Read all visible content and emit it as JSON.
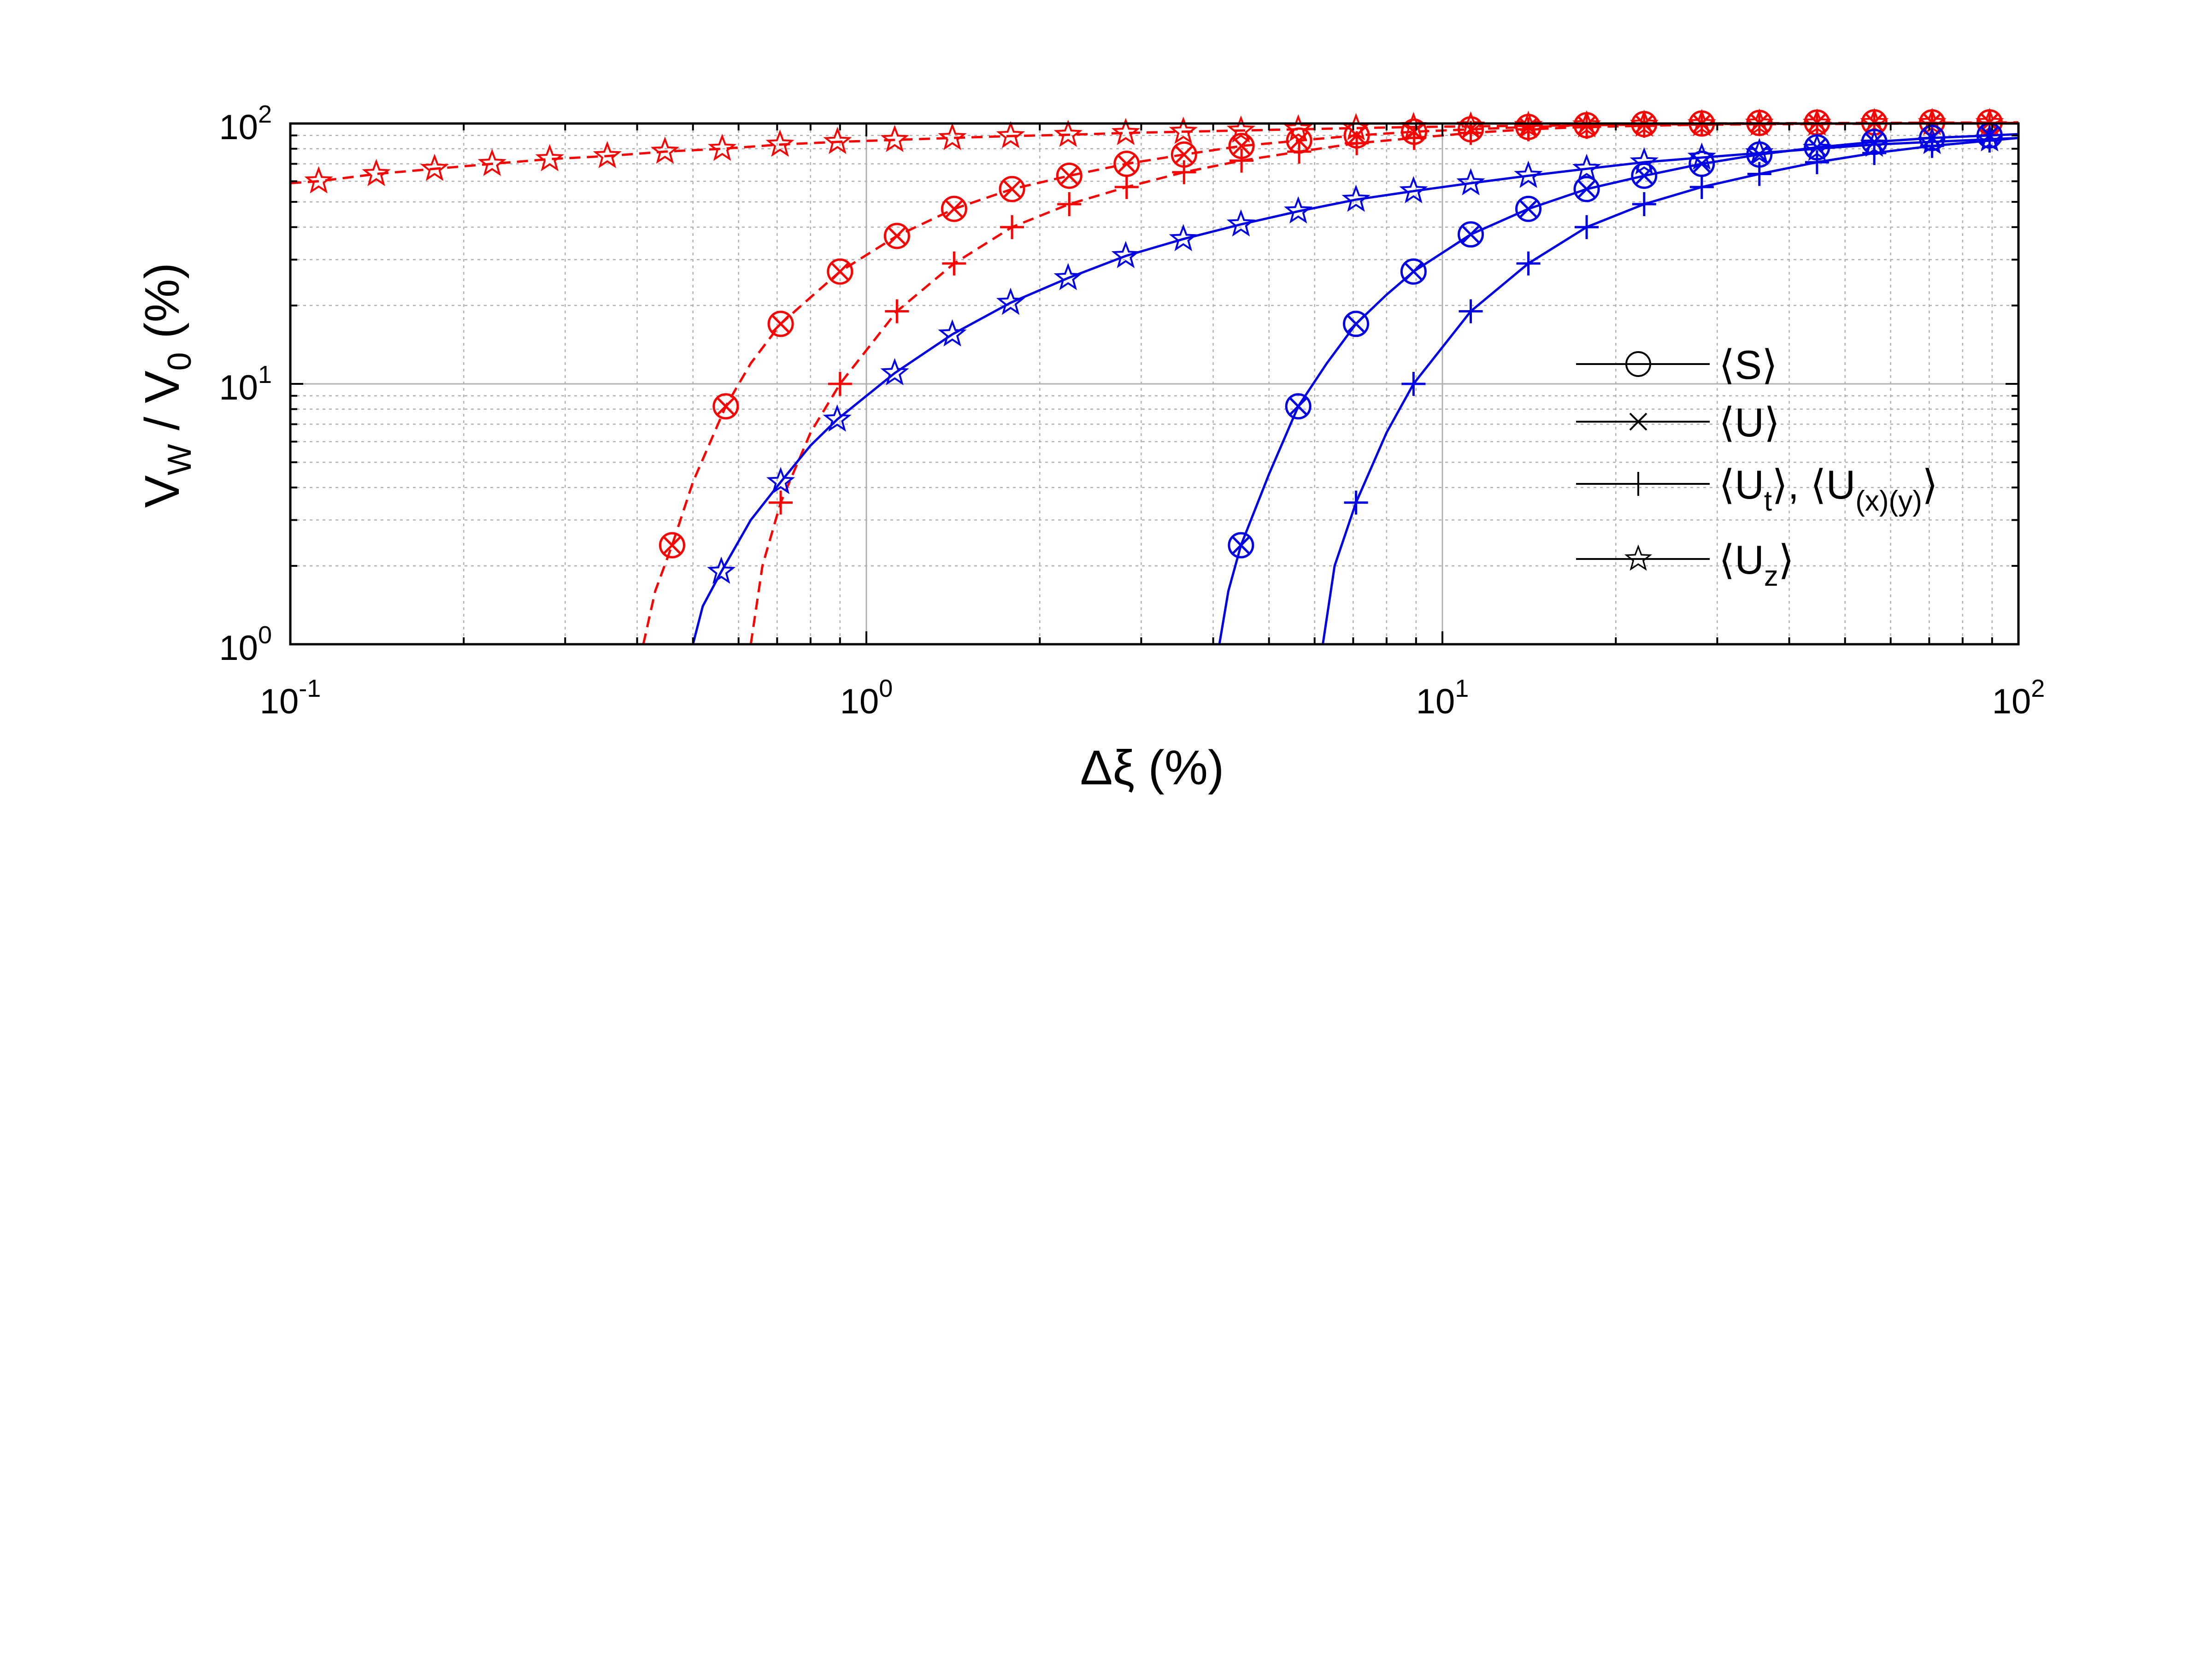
{
  "chart_data": {
    "type": "line",
    "title": "",
    "xlabel_parts": {
      "symbol": "Δξ",
      "unit": "(%)"
    },
    "ylabel_parts": {
      "v": "V",
      "w_sub": "W",
      "slash": " / V",
      "zero_sub": "0",
      "unit": " (%)"
    },
    "x_scale": "log",
    "y_scale": "log",
    "xlim": [
      0.1,
      100
    ],
    "ylim": [
      1,
      100
    ],
    "grid": true,
    "minor_grid": true,
    "x_ticks": [
      {
        "value": 0.1,
        "base": "10",
        "exp": "-1"
      },
      {
        "value": 1,
        "base": "10",
        "exp": "0"
      },
      {
        "value": 10,
        "base": "10",
        "exp": "1"
      },
      {
        "value": 100,
        "base": "10",
        "exp": "2"
      }
    ],
    "y_ticks": [
      {
        "value": 1,
        "base": "10",
        "exp": "0"
      },
      {
        "value": 10,
        "base": "10",
        "exp": "1"
      },
      {
        "value": 100,
        "base": "10",
        "exp": "2"
      }
    ],
    "colors": {
      "red": "#ff0000",
      "blue": "#0000e6",
      "legend": "#000000",
      "grid": "#b0b0b0"
    },
    "legend": {
      "placement": "center-right",
      "entries": [
        {
          "marker": "circle",
          "parts": [
            {
              "t": "⟨S⟩"
            }
          ]
        },
        {
          "marker": "x",
          "parts": [
            {
              "t": "⟨U⟩"
            }
          ]
        },
        {
          "marker": "plus",
          "parts": [
            {
              "t": "⟨U"
            },
            {
              "t": "t",
              "sub": true
            },
            {
              "t": "⟩, ⟨U"
            },
            {
              "t": "(x)(y)",
              "sub": true
            },
            {
              "t": "⟩"
            }
          ]
        },
        {
          "marker": "star",
          "parts": [
            {
              "t": "⟨U"
            },
            {
              "t": "z",
              "sub": true
            },
            {
              "t": "⟩"
            }
          ]
        }
      ]
    },
    "series": [
      {
        "color": "red",
        "dash": true,
        "markers": [
          "circle",
          "x"
        ],
        "curve": [
          [
            0.41,
            1.0
          ],
          [
            0.43,
            1.6
          ],
          [
            0.46,
            2.4
          ],
          [
            0.5,
            4.2
          ],
          [
            0.57,
            8.2
          ],
          [
            0.63,
            12.0
          ],
          [
            0.71,
            17.0
          ],
          [
            0.8,
            21.5
          ],
          [
            0.9,
            27.0
          ],
          [
            1.13,
            37.0
          ],
          [
            1.42,
            47.0
          ],
          [
            1.79,
            56.0
          ],
          [
            2.25,
            63.0
          ],
          [
            2.83,
            70.0
          ],
          [
            3.56,
            76.0
          ],
          [
            4.48,
            82.0
          ],
          [
            5.64,
            86.0
          ],
          [
            7.1,
            90.0
          ],
          [
            8.93,
            93.0
          ],
          [
            11.2,
            95.0
          ],
          [
            14.1,
            97.0
          ],
          [
            17.8,
            98.5
          ],
          [
            22.4,
            99.5
          ],
          [
            28.2,
            100.0
          ],
          [
            100,
            101.0
          ]
        ],
        "points": [
          [
            0.46,
            2.4
          ],
          [
            0.57,
            8.2
          ],
          [
            0.71,
            17.0
          ],
          [
            0.9,
            27.0
          ],
          [
            1.13,
            37.0
          ],
          [
            1.42,
            47.0
          ],
          [
            1.79,
            56.0
          ],
          [
            2.25,
            63.0
          ],
          [
            2.83,
            70.0
          ],
          [
            3.56,
            76.0
          ],
          [
            4.48,
            82.0
          ],
          [
            5.64,
            86.0
          ],
          [
            7.1,
            90.0
          ],
          [
            8.93,
            93.0
          ],
          [
            11.2,
            95.0
          ],
          [
            14.1,
            97.0
          ],
          [
            17.8,
            98.5
          ],
          [
            22.4,
            99.5
          ],
          [
            28.2,
            100.0
          ],
          [
            35.5,
            100.5
          ],
          [
            44.7,
            100.8
          ],
          [
            56.2,
            101.0
          ],
          [
            70.8,
            101.0
          ],
          [
            89.1,
            101.0
          ]
        ]
      },
      {
        "color": "red",
        "dash": true,
        "markers": [
          "plus"
        ],
        "curve": [
          [
            0.63,
            1.0
          ],
          [
            0.66,
            2.0
          ],
          [
            0.71,
            3.5
          ],
          [
            0.8,
            6.5
          ],
          [
            0.9,
            10.0
          ],
          [
            1.13,
            19.0
          ],
          [
            1.42,
            29.0
          ],
          [
            1.79,
            40.0
          ],
          [
            2.25,
            49.0
          ],
          [
            2.83,
            57.0
          ],
          [
            3.56,
            65.0
          ],
          [
            4.48,
            72.0
          ],
          [
            5.64,
            78.0
          ],
          [
            7.1,
            84.0
          ],
          [
            8.93,
            88.0
          ],
          [
            11.2,
            92.0
          ],
          [
            14.1,
            95.0
          ],
          [
            17.8,
            97.0
          ],
          [
            22.4,
            98.0
          ],
          [
            28.2,
            99.0
          ],
          [
            100,
            100.5
          ]
        ],
        "points": [
          [
            0.71,
            3.5
          ],
          [
            0.9,
            10.0
          ],
          [
            1.13,
            19.0
          ],
          [
            1.42,
            29.0
          ],
          [
            1.79,
            40.0
          ],
          [
            2.25,
            49.0
          ],
          [
            2.83,
            57.0
          ],
          [
            3.56,
            65.0
          ],
          [
            4.48,
            72.0
          ],
          [
            5.64,
            78.0
          ],
          [
            7.1,
            84.0
          ],
          [
            8.93,
            88.0
          ],
          [
            11.2,
            92.0
          ],
          [
            14.1,
            95.0
          ],
          [
            17.8,
            97.0
          ],
          [
            22.4,
            98.0
          ],
          [
            28.2,
            99.0
          ],
          [
            35.5,
            99.5
          ],
          [
            44.7,
            100.0
          ],
          [
            56.2,
            100.0
          ],
          [
            70.8,
            100.5
          ],
          [
            89.1,
            100.5
          ]
        ]
      },
      {
        "color": "red",
        "dash": true,
        "markers": [
          "star"
        ],
        "curve": [
          [
            0.1,
            59.0
          ],
          [
            0.112,
            60.0
          ],
          [
            0.141,
            64.0
          ],
          [
            0.178,
            67.0
          ],
          [
            0.224,
            70.0
          ],
          [
            0.282,
            73.0
          ],
          [
            0.355,
            75.0
          ],
          [
            0.447,
            78.0
          ],
          [
            0.562,
            80.0
          ],
          [
            0.708,
            83.0
          ],
          [
            0.891,
            85.0
          ],
          [
            1.12,
            86.5
          ],
          [
            1.41,
            88.0
          ],
          [
            1.78,
            89.5
          ],
          [
            2.24,
            90.5
          ],
          [
            2.82,
            92.0
          ],
          [
            3.55,
            93.0
          ],
          [
            4.47,
            94.0
          ],
          [
            5.62,
            95.0
          ],
          [
            7.08,
            96.0
          ],
          [
            8.91,
            97.0
          ],
          [
            11.2,
            97.5
          ],
          [
            14.1,
            98.0
          ],
          [
            17.8,
            98.5
          ],
          [
            22.4,
            99.0
          ],
          [
            28.2,
            99.5
          ],
          [
            100,
            100.5
          ]
        ],
        "points": [
          [
            0.112,
            60.0
          ],
          [
            0.141,
            64.0
          ],
          [
            0.178,
            67.0
          ],
          [
            0.224,
            70.0
          ],
          [
            0.282,
            73.0
          ],
          [
            0.355,
            75.0
          ],
          [
            0.447,
            78.0
          ],
          [
            0.562,
            80.0
          ],
          [
            0.708,
            83.0
          ],
          [
            0.891,
            85.0
          ],
          [
            1.12,
            86.5
          ],
          [
            1.41,
            88.0
          ],
          [
            1.78,
            89.5
          ],
          [
            2.24,
            90.5
          ],
          [
            2.82,
            92.0
          ],
          [
            3.55,
            93.0
          ],
          [
            4.47,
            94.0
          ],
          [
            5.62,
            95.0
          ],
          [
            7.08,
            96.0
          ],
          [
            8.91,
            97.0
          ],
          [
            11.2,
            97.5
          ],
          [
            14.1,
            98.0
          ],
          [
            17.8,
            98.5
          ],
          [
            22.4,
            99.0
          ],
          [
            28.2,
            99.5
          ],
          [
            35.5,
            100.0
          ],
          [
            44.7,
            100.0
          ],
          [
            56.2,
            100.5
          ],
          [
            70.8,
            100.5
          ],
          [
            89.1,
            100.5
          ]
        ]
      },
      {
        "color": "blue",
        "dash": false,
        "markers": [
          "star"
        ],
        "curve": [
          [
            0.5,
            1.0
          ],
          [
            0.52,
            1.4
          ],
          [
            0.56,
            1.9
          ],
          [
            0.63,
            3.0
          ],
          [
            0.71,
            4.2
          ],
          [
            0.8,
            5.8
          ],
          [
            0.89,
            7.3
          ],
          [
            1.12,
            11.0
          ],
          [
            1.41,
            15.5
          ],
          [
            1.78,
            20.5
          ],
          [
            2.24,
            25.5
          ],
          [
            2.82,
            31.0
          ],
          [
            3.55,
            36.0
          ],
          [
            4.47,
            41.0
          ],
          [
            5.62,
            46.0
          ],
          [
            7.08,
            51.0
          ],
          [
            8.91,
            55.0
          ],
          [
            11.2,
            59.0
          ],
          [
            14.1,
            63.0
          ],
          [
            17.8,
            67.0
          ],
          [
            22.4,
            71.0
          ],
          [
            28.2,
            74.0
          ],
          [
            35.5,
            77.0
          ],
          [
            44.7,
            80.0
          ],
          [
            56.2,
            83.0
          ],
          [
            70.8,
            85.0
          ],
          [
            89.1,
            87.0
          ],
          [
            100,
            88.0
          ]
        ],
        "points": [
          [
            0.56,
            1.9
          ],
          [
            0.71,
            4.2
          ],
          [
            0.89,
            7.3
          ],
          [
            1.12,
            11.0
          ],
          [
            1.41,
            15.5
          ],
          [
            1.78,
            20.5
          ],
          [
            2.24,
            25.5
          ],
          [
            2.82,
            31.0
          ],
          [
            3.55,
            36.0
          ],
          [
            4.47,
            41.0
          ],
          [
            5.62,
            46.0
          ],
          [
            7.08,
            51.0
          ],
          [
            8.91,
            55.0
          ],
          [
            11.2,
            59.0
          ],
          [
            14.1,
            63.0
          ],
          [
            17.8,
            67.0
          ],
          [
            22.4,
            71.0
          ],
          [
            28.2,
            74.0
          ],
          [
            35.5,
            77.0
          ],
          [
            44.7,
            80.0
          ],
          [
            56.2,
            83.0
          ],
          [
            70.8,
            85.0
          ],
          [
            89.1,
            87.0
          ]
        ]
      },
      {
        "color": "blue",
        "dash": false,
        "markers": [
          "circle",
          "x"
        ],
        "curve": [
          [
            4.1,
            1.0
          ],
          [
            4.25,
            1.6
          ],
          [
            4.47,
            2.4
          ],
          [
            5.0,
            4.5
          ],
          [
            5.62,
            8.2
          ],
          [
            6.3,
            12.0
          ],
          [
            7.08,
            17.0
          ],
          [
            8.0,
            22.0
          ],
          [
            8.91,
            27.0
          ],
          [
            11.2,
            37.5
          ],
          [
            14.1,
            47.0
          ],
          [
            17.8,
            56.0
          ],
          [
            22.4,
            63.0
          ],
          [
            28.2,
            70.0
          ],
          [
            35.5,
            76.0
          ],
          [
            44.7,
            81.0
          ],
          [
            56.2,
            85.0
          ],
          [
            70.8,
            88.0
          ],
          [
            89.1,
            90.0
          ],
          [
            100,
            91.0
          ]
        ],
        "points": [
          [
            4.47,
            2.4
          ],
          [
            5.62,
            8.2
          ],
          [
            7.08,
            17.0
          ],
          [
            8.91,
            27.0
          ],
          [
            11.2,
            37.5
          ],
          [
            14.1,
            47.0
          ],
          [
            17.8,
            56.0
          ],
          [
            22.4,
            63.0
          ],
          [
            28.2,
            70.0
          ],
          [
            35.5,
            76.0
          ],
          [
            44.7,
            81.0
          ],
          [
            56.2,
            85.0
          ],
          [
            70.8,
            88.0
          ],
          [
            89.1,
            90.0
          ]
        ]
      },
      {
        "color": "blue",
        "dash": false,
        "markers": [
          "plus"
        ],
        "curve": [
          [
            6.2,
            1.0
          ],
          [
            6.5,
            2.0
          ],
          [
            7.08,
            3.5
          ],
          [
            8.0,
            6.5
          ],
          [
            8.91,
            10.0
          ],
          [
            11.2,
            19.0
          ],
          [
            14.1,
            29.0
          ],
          [
            17.8,
            40.0
          ],
          [
            22.4,
            49.0
          ],
          [
            28.2,
            57.0
          ],
          [
            35.5,
            64.0
          ],
          [
            44.7,
            71.0
          ],
          [
            56.2,
            77.0
          ],
          [
            70.8,
            82.0
          ],
          [
            89.1,
            86.0
          ],
          [
            100,
            88.0
          ]
        ],
        "points": [
          [
            7.08,
            3.5
          ],
          [
            8.91,
            10.0
          ],
          [
            11.2,
            19.0
          ],
          [
            14.1,
            29.0
          ],
          [
            17.8,
            40.0
          ],
          [
            22.4,
            49.0
          ],
          [
            28.2,
            57.0
          ],
          [
            35.5,
            64.0
          ],
          [
            44.7,
            71.0
          ],
          [
            56.2,
            77.0
          ],
          [
            70.8,
            82.0
          ],
          [
            89.1,
            86.0
          ]
        ]
      }
    ]
  }
}
